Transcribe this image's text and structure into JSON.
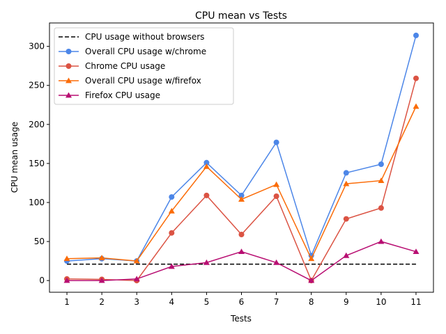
{
  "chart_data": {
    "type": "line",
    "title": "CPU mean vs Tests",
    "xlabel": "Tests",
    "ylabel": "CPU mean usage",
    "x": [
      1,
      2,
      3,
      4,
      5,
      6,
      7,
      8,
      9,
      10,
      11
    ],
    "xlim": [
      0.5,
      11.5
    ],
    "ylim": [
      -15,
      330
    ],
    "yticks": [
      0,
      50,
      100,
      150,
      200,
      250,
      300
    ],
    "legend_position": "top-left",
    "grid": false,
    "reference_line": {
      "name": "CPU usage without browsers",
      "value": 21,
      "x_range": [
        1,
        11
      ],
      "color": "#000000",
      "style": "dashed"
    },
    "series": [
      {
        "name": "Overall CPU usage w/chrome",
        "color": "#4c86e8",
        "marker": "circle",
        "values": [
          25,
          28,
          25,
          107,
          151,
          109,
          177,
          32,
          138,
          149,
          314
        ]
      },
      {
        "name": "Chrome CPU usage",
        "color": "#db5343",
        "marker": "circle",
        "values": [
          2,
          1.5,
          0,
          61,
          109,
          59,
          108,
          0,
          79,
          93,
          259
        ]
      },
      {
        "name": "Overall CPU usage w/firefox",
        "color": "#fb6c08",
        "marker": "triangle",
        "values": [
          28,
          29,
          25,
          89,
          146,
          104,
          123,
          28,
          124,
          128,
          223
        ]
      },
      {
        "name": "Firefox CPU usage",
        "color": "#b80e72",
        "marker": "triangle",
        "values": [
          0,
          0,
          2,
          18,
          23,
          37,
          23,
          0,
          32,
          50,
          37
        ]
      }
    ]
  }
}
